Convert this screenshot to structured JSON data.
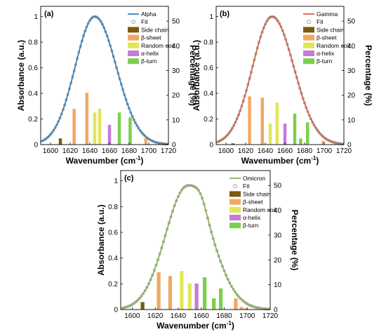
{
  "colors": {
    "side_chain": "#7a5a10",
    "beta_sheet": "#f0a862",
    "random_coil": "#e2e657",
    "alpha_helix": "#c77ad6",
    "beta_turn": "#7ccf4e",
    "alpha_line": "#3c7fb4",
    "gamma_line": "#d26448",
    "omicron_line": "#8bb35b",
    "fit_marker": "#8a8a8a"
  },
  "chart_data": [
    {
      "type": "line+bar",
      "panel_label": "(a)",
      "xlabel": "Wavenumber (cm",
      "xlabel_sup": "-1",
      "xlabel_end": ")",
      "ylabel_left": "Absorbance (a.u.)",
      "ylabel_right": "Percentage (%)",
      "xlim": [
        1590,
        1720
      ],
      "ylim_left": [
        0,
        1.08
      ],
      "ylim_right": [
        0,
        56
      ],
      "xticks": [
        "1600",
        "1620",
        "1640",
        "1660",
        "1680",
        "1700",
        "1720"
      ],
      "yticks_left": [
        "0",
        "0.2",
        "0.4",
        "0.6",
        "0.8",
        "1"
      ],
      "yticks_right": [
        "0",
        "10",
        "20",
        "30",
        "40",
        "50"
      ],
      "line_series": {
        "name": "Alpha",
        "color_key": "alpha_line",
        "peak_x": 1645,
        "width_left": 20,
        "width_right": 22,
        "shoulder": 0
      },
      "fit_name": "Fit",
      "legend": [
        "Alpha",
        "Fit",
        "Side chain",
        "β-sheet",
        "Random coil",
        "α-helix",
        "β-turn"
      ],
      "bars": [
        {
          "x": 1610,
          "value": 2.5,
          "component": "side_chain"
        },
        {
          "x": 1624,
          "value": 14.5,
          "component": "beta_sheet"
        },
        {
          "x": 1637,
          "value": 21,
          "component": "beta_sheet"
        },
        {
          "x": 1645,
          "value": 13,
          "component": "random_coil"
        },
        {
          "x": 1650,
          "value": 14.5,
          "component": "random_coil"
        },
        {
          "x": 1660,
          "value": 8,
          "component": "alpha_helix"
        },
        {
          "x": 1670,
          "value": 13,
          "component": "beta_turn"
        },
        {
          "x": 1681,
          "value": 11,
          "component": "beta_turn"
        },
        {
          "x": 1697,
          "value": 2.5,
          "component": "beta_sheet"
        }
      ]
    },
    {
      "type": "line+bar",
      "panel_label": "(b)",
      "xlabel": "Wavenumber (cm",
      "xlabel_sup": "-1",
      "xlabel_end": ")",
      "ylabel_left": "Absorbance (a.u.)",
      "ylabel_right": "Percentage (%)",
      "xlim": [
        1590,
        1720
      ],
      "ylim_left": [
        0,
        1.08
      ],
      "ylim_right": [
        0,
        56
      ],
      "xticks": [
        "1600",
        "1620",
        "1640",
        "1660",
        "1680",
        "1700",
        "1720"
      ],
      "yticks_left": [
        "0",
        "0.2",
        "0.4",
        "0.6",
        "0.8",
        "1"
      ],
      "yticks_right": [
        "0",
        "10",
        "20",
        "30",
        "40",
        "50"
      ],
      "line_series": {
        "name": "Gamma",
        "color_key": "gamma_line",
        "peak_x": 1647,
        "width_left": 20,
        "width_right": 22,
        "shoulder": 0
      },
      "fit_name": "Fit",
      "legend": [
        "Gamma",
        "Fit",
        "Side chain",
        "β-sheet",
        "Random coil",
        "α-helix",
        "β-turn"
      ],
      "bars": [
        {
          "x": 1607,
          "value": 0.5,
          "component": "side_chain"
        },
        {
          "x": 1624,
          "value": 19.5,
          "component": "beta_sheet"
        },
        {
          "x": 1637,
          "value": 19,
          "component": "beta_sheet"
        },
        {
          "x": 1645,
          "value": 8.5,
          "component": "random_coil"
        },
        {
          "x": 1652,
          "value": 17,
          "component": "random_coil"
        },
        {
          "x": 1660,
          "value": 8.5,
          "component": "alpha_helix"
        },
        {
          "x": 1670,
          "value": 12.5,
          "component": "beta_turn"
        },
        {
          "x": 1676,
          "value": 2.5,
          "component": "beta_turn"
        },
        {
          "x": 1683,
          "value": 9,
          "component": "beta_turn"
        },
        {
          "x": 1699,
          "value": 1.5,
          "component": "beta_sheet"
        }
      ]
    },
    {
      "type": "line+bar",
      "panel_label": "(c)",
      "xlabel": "Wavenumber (cm",
      "xlabel_sup": "-1",
      "xlabel_end": ")",
      "ylabel_left": "Absorbance (a.u.)",
      "ylabel_right": "Percentage (%)",
      "xlim": [
        1590,
        1720
      ],
      "ylim_left": [
        0,
        1.08
      ],
      "ylim_right": [
        0,
        56
      ],
      "xticks": [
        "1600",
        "1620",
        "1640",
        "1660",
        "1680",
        "1700",
        "1720"
      ],
      "yticks_left": [
        "0",
        "0.2",
        "0.4",
        "0.6",
        "0.8",
        "1"
      ],
      "yticks_right": [
        "0",
        "10",
        "20",
        "30",
        "40",
        "50"
      ],
      "line_series": {
        "name": "Omicron",
        "color_key": "omicron_line",
        "peak_x": 1648,
        "width_left": 19,
        "width_right": 21,
        "shoulder": 1
      },
      "fit_name": "Fit",
      "legend": [
        "Omicron",
        "Fit",
        "Side chain",
        "β-sheet",
        "Random coil",
        "α-helix",
        "β-turn"
      ],
      "bars": [
        {
          "x": 1609,
          "value": 3,
          "component": "side_chain"
        },
        {
          "x": 1623,
          "value": 15,
          "component": "beta_sheet"
        },
        {
          "x": 1633,
          "value": 13.5,
          "component": "beta_sheet"
        },
        {
          "x": 1643,
          "value": 15.5,
          "component": "random_coil"
        },
        {
          "x": 1650,
          "value": 10.5,
          "component": "random_coil"
        },
        {
          "x": 1656,
          "value": 10.5,
          "component": "alpha_helix"
        },
        {
          "x": 1663,
          "value": 13,
          "component": "beta_turn"
        },
        {
          "x": 1671,
          "value": 4.5,
          "component": "beta_turn"
        },
        {
          "x": 1677,
          "value": 8.5,
          "component": "beta_turn"
        },
        {
          "x": 1690,
          "value": 4.5,
          "component": "beta_sheet"
        },
        {
          "x": 1695,
          "value": 1,
          "component": "beta_sheet"
        },
        {
          "x": 1699,
          "value": 0.5,
          "component": "beta_sheet"
        }
      ]
    }
  ]
}
